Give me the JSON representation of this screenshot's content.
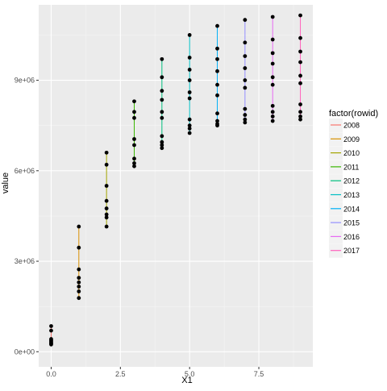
{
  "chart_data": {
    "type": "scatter",
    "xlabel": "X1",
    "ylabel": "value",
    "xlim": [
      -0.45,
      9.45
    ],
    "ylim": [
      -500000,
      11500000
    ],
    "grid": true,
    "legend_position": "right",
    "x_ticks": [
      {
        "value": 0.0,
        "label": "0.0"
      },
      {
        "value": 2.5,
        "label": "2.5"
      },
      {
        "value": 5.0,
        "label": "5.0"
      },
      {
        "value": 7.5,
        "label": "7.5"
      }
    ],
    "y_ticks": [
      {
        "value": 0,
        "label": "0e+00"
      },
      {
        "value": 3000000,
        "label": "3e+06"
      },
      {
        "value": 6000000,
        "label": "6e+06"
      },
      {
        "value": 9000000,
        "label": "9e+06"
      }
    ],
    "legend": {
      "title": "factor(rowid)",
      "entries": [
        {
          "name": "2008",
          "color": "#F8766D"
        },
        {
          "name": "2009",
          "color": "#D89000"
        },
        {
          "name": "2010",
          "color": "#A3A500"
        },
        {
          "name": "2011",
          "color": "#39B600"
        },
        {
          "name": "2012",
          "color": "#00BF7D"
        },
        {
          "name": "2013",
          "color": "#00BFC4"
        },
        {
          "name": "2014",
          "color": "#00B0F6"
        },
        {
          "name": "2015",
          "color": "#9590FF"
        },
        {
          "name": "2016",
          "color": "#E76BF3"
        },
        {
          "name": "2017",
          "color": "#FF62BC"
        }
      ]
    },
    "points": [
      {
        "x": 0,
        "y": [
          850000,
          700000,
          420000,
          380000,
          340000,
          300000,
          270000,
          240000
        ]
      },
      {
        "x": 1,
        "y": [
          4150000,
          3450000,
          2730000,
          2450000,
          2300000,
          2160000,
          2000000,
          1780000
        ]
      },
      {
        "x": 2,
        "y": [
          6600000,
          6200000,
          5500000,
          5000000,
          4750000,
          4550000,
          4450000,
          4150000
        ]
      },
      {
        "x": 3,
        "y": [
          8300000,
          7950000,
          7750000,
          7050000,
          6850000,
          6400000,
          6250000,
          6150000
        ]
      },
      {
        "x": 4,
        "y": [
          9700000,
          9100000,
          8650000,
          8350000,
          7950000,
          7750000,
          7150000,
          6950000,
          6850000,
          6750000
        ]
      },
      {
        "x": 5,
        "y": [
          10500000,
          9750000,
          9350000,
          9000000,
          8600000,
          8400000,
          7700000,
          7500000,
          7400000,
          7250000
        ]
      },
      {
        "x": 6,
        "y": [
          10800000,
          10050000,
          9700000,
          9300000,
          8850000,
          8500000,
          7900000,
          7650000,
          7550000,
          7500000
        ]
      },
      {
        "x": 7,
        "y": [
          11000000,
          10250000,
          9800000,
          9400000,
          9000000,
          8750000,
          8050000,
          7850000,
          7700000,
          7600000
        ]
      },
      {
        "x": 8,
        "y": [
          11100000,
          10350000,
          9900000,
          9550000,
          9100000,
          8850000,
          8150000,
          7950000,
          7800000,
          7650000
        ]
      },
      {
        "x": 9,
        "y": [
          11150000,
          10400000,
          9950000,
          9600000,
          9150000,
          8900000,
          8200000,
          7950000,
          7800000,
          7700000
        ]
      }
    ]
  }
}
